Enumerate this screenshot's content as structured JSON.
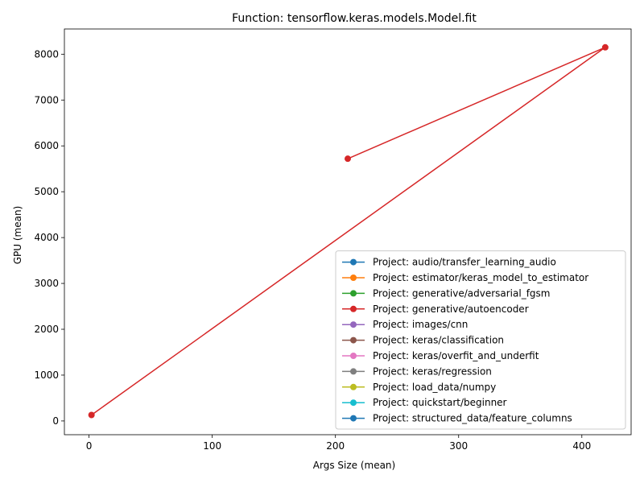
{
  "chart_data": {
    "type": "line",
    "title": "Function: tensorflow.keras.models.Model.fit",
    "xlabel": "Args Size (mean)",
    "ylabel": "GPU (mean)",
    "xlim": [
      -20,
      440
    ],
    "ylim": [
      -300,
      8550
    ],
    "xticks": [
      0,
      100,
      200,
      300,
      400
    ],
    "yticks": [
      0,
      1000,
      2000,
      3000,
      4000,
      5000,
      6000,
      7000,
      8000
    ],
    "grid": false,
    "legend_position": "lower-right",
    "series": [
      {
        "name": "Project: audio/transfer_learning_audio",
        "color": "#1f77b4",
        "x": [],
        "y": []
      },
      {
        "name": "Project: estimator/keras_model_to_estimator",
        "color": "#ff7f0e",
        "x": [],
        "y": []
      },
      {
        "name": "Project: generative/adversarial_fgsm",
        "color": "#2ca02c",
        "x": [],
        "y": []
      },
      {
        "name": "Project: generative/autoencoder",
        "color": "#d62728",
        "x": [
          210,
          419,
          2
        ],
        "y": [
          5720,
          8150,
          130
        ]
      },
      {
        "name": "Project: images/cnn",
        "color": "#9467bd",
        "x": [],
        "y": []
      },
      {
        "name": "Project: keras/classification",
        "color": "#8c564b",
        "x": [],
        "y": []
      },
      {
        "name": "Project: keras/overfit_and_underfit",
        "color": "#e377c2",
        "x": [],
        "y": []
      },
      {
        "name": "Project: keras/regression",
        "color": "#7f7f7f",
        "x": [],
        "y": []
      },
      {
        "name": "Project: load_data/numpy",
        "color": "#bcbd22",
        "x": [],
        "y": []
      },
      {
        "name": "Project: quickstart/beginner",
        "color": "#17becf",
        "x": [],
        "y": []
      },
      {
        "name": "Project: structured_data/feature_columns",
        "color": "#1f77b4",
        "x": [],
        "y": []
      }
    ]
  }
}
